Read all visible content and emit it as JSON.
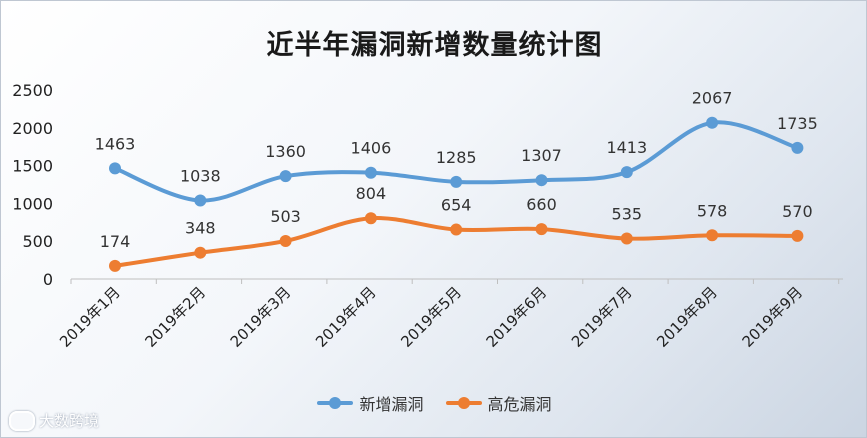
{
  "chart_data": {
    "type": "line",
    "title": "近半年漏洞新增数量统计图",
    "categories": [
      "2019年1月",
      "2019年2月",
      "2019年3月",
      "2019年4月",
      "2019年5月",
      "2019年6月",
      "2019年7月",
      "2019年8月",
      "2019年9月"
    ],
    "series": [
      {
        "name": "新增漏洞",
        "color": "#5b9bd5",
        "values": [
          1463,
          1038,
          1360,
          1406,
          1285,
          1307,
          1413,
          2067,
          1735
        ]
      },
      {
        "name": "高危漏洞",
        "color": "#ed7d31",
        "values": [
          174,
          348,
          503,
          804,
          654,
          660,
          535,
          578,
          570
        ]
      }
    ],
    "ylim": [
      0,
      2500
    ],
    "yticks": [
      0,
      500,
      1000,
      1500,
      2000,
      2500
    ],
    "grid": false,
    "legend": "bottom"
  },
  "watermark": "大数跨境"
}
